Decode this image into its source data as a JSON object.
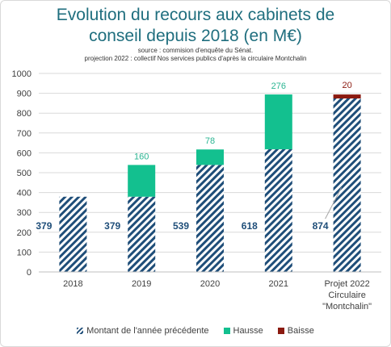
{
  "title_lines": [
    "Evolution du recours aux cabinets de",
    "conseil depuis 2018 (en M€)"
  ],
  "source_lines": [
    "source : commision d'enquête du Sénat.",
    "projection 2022 : collectif Nos services publics d'après la circulaire Montchalin"
  ],
  "colors": {
    "base": "#1f4e79",
    "increase": "#13c08f",
    "decrease": "#8b1a10"
  },
  "chart_data": {
    "type": "bar",
    "stacked": true,
    "categories": [
      [
        "2018"
      ],
      [
        "2019"
      ],
      [
        "2020"
      ],
      [
        "2021"
      ],
      [
        "Projet 2022",
        "Circulaire",
        "\"Montchalin\""
      ]
    ],
    "series": [
      {
        "name": "Montant de l'année précédente",
        "values": [
          379,
          379,
          539,
          618,
          874
        ]
      },
      {
        "name": "Hausse",
        "values": [
          null,
          160,
          78,
          276,
          null
        ]
      },
      {
        "name": "Baisse",
        "values": [
          null,
          null,
          null,
          null,
          20
        ]
      }
    ],
    "ylim": [
      0,
      1000
    ],
    "yticks": [
      0,
      100,
      200,
      300,
      400,
      500,
      600,
      700,
      800,
      900,
      1000
    ],
    "grid": true,
    "legend_position": "bottom"
  }
}
